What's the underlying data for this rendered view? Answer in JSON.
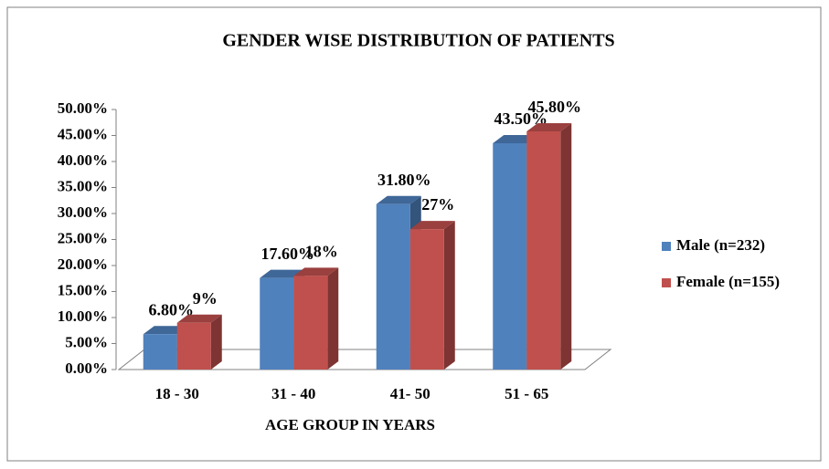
{
  "chart_data": {
    "type": "bar",
    "title": "GENDER WISE DISTRIBUTION OF PATIENTS",
    "x_label": "AGE GROUP IN YEARS",
    "categories": [
      "18 - 30",
      "31 - 40",
      "41- 50",
      "51 - 65"
    ],
    "series": [
      {
        "name": "Male (n=232)",
        "color": "#4f81bd",
        "values": [
          6.8,
          17.6,
          31.8,
          43.5
        ],
        "value_labels": [
          "6.80%",
          "17.60%",
          "31.80%",
          "43.50%"
        ]
      },
      {
        "name": "Female (n=155)",
        "color": "#c0504d",
        "values": [
          9,
          18,
          27,
          45.8
        ],
        "value_labels": [
          "9%",
          "18%",
          "27%",
          "45.80%"
        ]
      }
    ],
    "ylim": [
      0,
      50
    ],
    "yticks": [
      {
        "value": 0,
        "label": "0.00%"
      },
      {
        "value": 5,
        "label": "5.00%"
      },
      {
        "value": 10,
        "label": "10.00%"
      },
      {
        "value": 15,
        "label": "15.00%"
      },
      {
        "value": 20,
        "label": "20.00%"
      },
      {
        "value": 25,
        "label": "25.00%"
      },
      {
        "value": 30,
        "label": "30.00%"
      },
      {
        "value": 35,
        "label": "35.00%"
      },
      {
        "value": 40,
        "label": "40.00%"
      },
      {
        "value": 45,
        "label": "45.00%"
      },
      {
        "value": 50,
        "label": "50.00%"
      }
    ],
    "grid": false,
    "legend": "right"
  }
}
